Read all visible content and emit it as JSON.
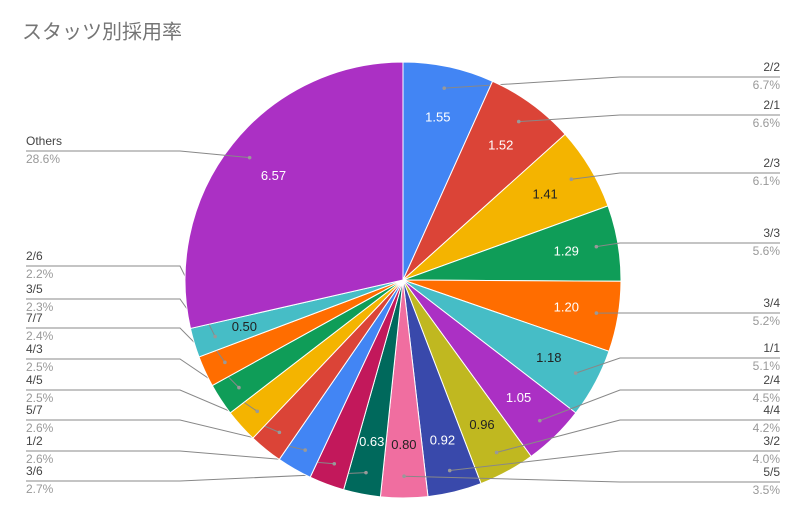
{
  "chart_data": {
    "type": "pie",
    "title": "スタッツ別採用率",
    "categories": [
      "2/2",
      "2/1",
      "2/3",
      "3/3",
      "3/4",
      "1/1",
      "2/4",
      "4/4",
      "3/2",
      "5/5",
      "3/6",
      "1/2",
      "5/7",
      "4/5",
      "4/3",
      "7/7",
      "3/5",
      "2/6",
      "Others"
    ],
    "values": [
      1.55,
      1.52,
      1.41,
      1.29,
      1.2,
      1.18,
      1.05,
      0.96,
      0.92,
      0.8,
      0.63,
      0.6,
      0.6,
      0.57,
      0.57,
      0.55,
      0.53,
      0.5,
      6.57
    ],
    "value_labels": [
      "1.55",
      "1.52",
      "1.41",
      "1.29",
      "1.20",
      "1.18",
      "1.05",
      "0.96",
      "0.92",
      "0.80",
      "0.63",
      null,
      null,
      null,
      null,
      null,
      null,
      "0.50",
      "6.57"
    ],
    "percent_labels": [
      "6.7%",
      "6.6%",
      "6.1%",
      "5.6%",
      "5.2%",
      "5.1%",
      "4.5%",
      "4.2%",
      "4.0%",
      "3.5%",
      "2.7%",
      "2.6%",
      "2.6%",
      "2.5%",
      "2.5%",
      "2.4%",
      "2.3%",
      "2.2%",
      "28.6%"
    ],
    "colors": [
      "#4285f4",
      "#db4437",
      "#f4b400",
      "#0f9d58",
      "#ff6d00",
      "#46bdc6",
      "#ab30c4",
      "#c0b820",
      "#3949ab",
      "#f06ea0",
      "#00695c",
      "#c2185b",
      "#4285f4",
      "#db4437",
      "#f4b400",
      "#0f9d58",
      "#ff6d00",
      "#46bdc6",
      "#ab30c4"
    ]
  }
}
